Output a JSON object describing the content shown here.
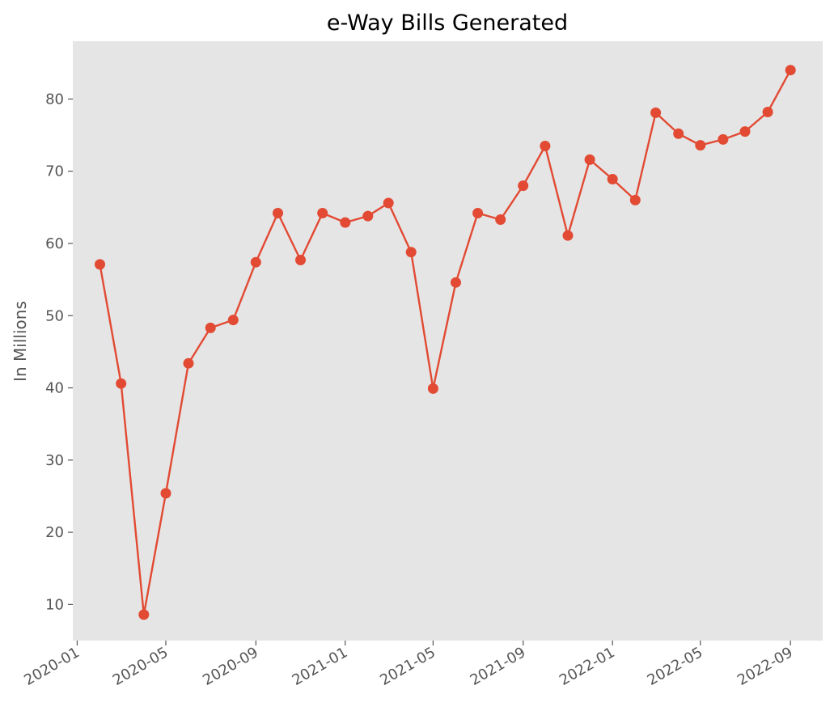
{
  "chart_data": {
    "type": "line",
    "title": "e-Way Bills Generated",
    "xlabel": "",
    "ylabel": "In Millions",
    "grid": false,
    "legend": "none",
    "background": "#E5E5E5",
    "line_color": "#E24A33",
    "x_tick_labels": [
      "2020-01",
      "2020-05",
      "2020-09",
      "2021-01",
      "2021-05",
      "2021-09",
      "2022-01",
      "2022-05",
      "2022-09"
    ],
    "y_ticks": [
      10,
      20,
      30,
      40,
      50,
      60,
      70,
      80
    ],
    "xlim": [
      "2019-12-26",
      "2022-10-15"
    ],
    "ylim": [
      5,
      88
    ],
    "series": [
      {
        "dates": [
          "2020-02-01",
          "2020-03-01",
          "2020-04-01",
          "2020-05-01",
          "2020-06-01",
          "2020-07-01",
          "2020-08-01",
          "2020-09-01",
          "2020-10-01",
          "2020-11-01",
          "2020-12-01",
          "2021-01-01",
          "2021-02-01",
          "2021-03-01",
          "2021-04-01",
          "2021-05-01",
          "2021-06-01",
          "2021-07-01",
          "2021-08-01",
          "2021-09-01",
          "2021-10-01",
          "2021-11-01",
          "2021-12-01",
          "2022-01-01",
          "2022-02-01",
          "2022-03-01",
          "2022-04-01",
          "2022-05-01",
          "2022-06-01",
          "2022-07-01",
          "2022-08-01",
          "2022-09-01"
        ],
        "values": [
          57.1,
          40.6,
          8.6,
          25.4,
          43.4,
          48.3,
          49.4,
          57.4,
          64.2,
          57.7,
          64.2,
          62.9,
          63.8,
          65.6,
          58.8,
          39.9,
          54.6,
          64.2,
          63.3,
          68.0,
          73.5,
          61.1,
          71.6,
          68.9,
          66.0,
          78.1,
          75.2,
          73.6,
          74.4,
          75.5,
          78.2,
          84.0
        ]
      }
    ]
  }
}
